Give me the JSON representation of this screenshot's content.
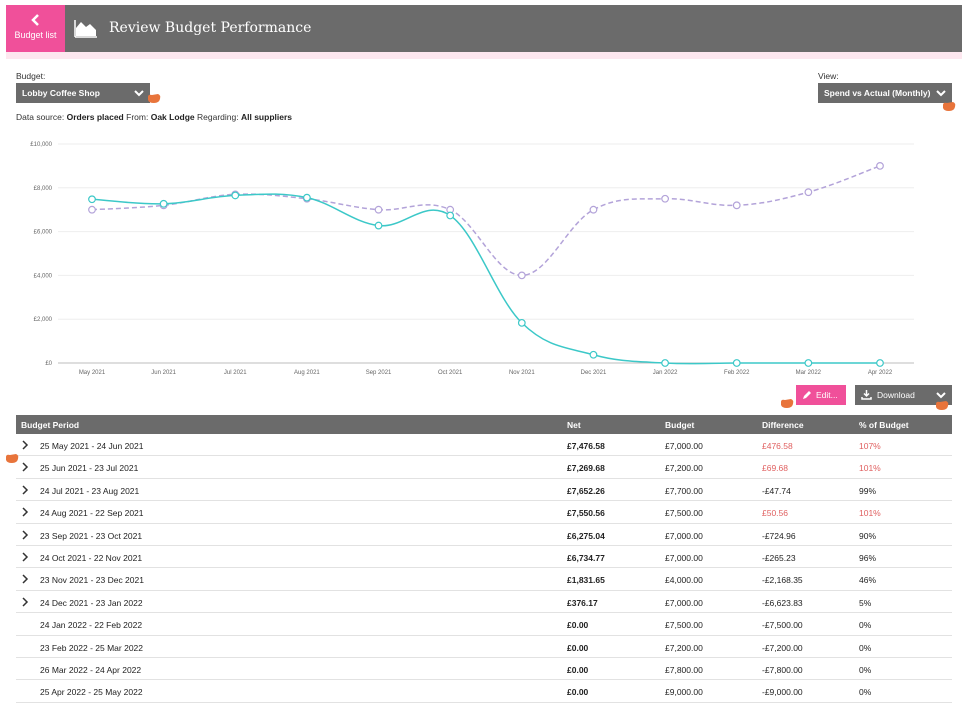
{
  "header": {
    "back_label": "Budget list",
    "title": "Review Budget Performance",
    "title_icon": "area-chart-icon"
  },
  "filters": {
    "budget_label": "Budget:",
    "budget_value": "Lobby Coffee Shop",
    "view_label": "View:",
    "view_value": "Spend vs Actual (Monthly)"
  },
  "datasource": {
    "prefix": "Data source:",
    "source": "Orders placed",
    "from_label": "From:",
    "from": "Oak Lodge",
    "regarding_label": "Regarding:",
    "regarding": "All suppliers"
  },
  "colors": {
    "actual": "#3cc8c8",
    "budget": "#b3a3d9",
    "accent": "#f0509a",
    "over": "#e06060"
  },
  "chart_data": {
    "type": "line",
    "categories": [
      "May 2021",
      "Jun 2021",
      "Jul 2021",
      "Aug 2021",
      "Sep 2021",
      "Oct 2021",
      "Nov 2021",
      "Dec 2021",
      "Jan 2022",
      "Feb 2022",
      "Mar 2022",
      "Apr 2022"
    ],
    "yticks": [
      "£0",
      "£2,000",
      "£4,000",
      "£6,000",
      "£8,000",
      "£10,000"
    ],
    "ylim": [
      0,
      10000
    ],
    "grid": true,
    "series": [
      {
        "style": "solid",
        "color": "#3cc8c8",
        "values": [
          7476.58,
          7269.68,
          7652.26,
          7550.56,
          6275.04,
          6734.77,
          1831.65,
          376.17,
          0,
          0,
          0,
          0
        ]
      },
      {
        "style": "dashed",
        "color": "#b3a3d9",
        "values": [
          7000,
          7200,
          7700,
          7500,
          7000,
          7000,
          4000,
          7000,
          7500,
          7200,
          7800,
          9000
        ]
      }
    ]
  },
  "actions": {
    "edit_label": "Edit...",
    "download_label": "Download"
  },
  "table": {
    "headers": {
      "period": "Budget Period",
      "net": "Net",
      "budget": "Budget",
      "difference": "Difference",
      "pct": "% of Budget"
    },
    "rows": [
      {
        "period": "25 May 2021 - 24 Jun 2021",
        "net": "£7,476.58",
        "budget": "£7,000.00",
        "difference": "£476.58",
        "pct": "107%",
        "over": true,
        "expand": true
      },
      {
        "period": "25 Jun 2021 - 23 Jul 2021",
        "net": "£7,269.68",
        "budget": "£7,200.00",
        "difference": "£69.68",
        "pct": "101%",
        "over": true,
        "expand": true
      },
      {
        "period": "24 Jul 2021 - 23 Aug 2021",
        "net": "£7,652.26",
        "budget": "£7,700.00",
        "difference": "-£47.74",
        "pct": "99%",
        "over": false,
        "expand": true
      },
      {
        "period": "24 Aug 2021 - 22 Sep 2021",
        "net": "£7,550.56",
        "budget": "£7,500.00",
        "difference": "£50.56",
        "pct": "101%",
        "over": true,
        "expand": true
      },
      {
        "period": "23 Sep 2021 - 23 Oct 2021",
        "net": "£6,275.04",
        "budget": "£7,000.00",
        "difference": "-£724.96",
        "pct": "90%",
        "over": false,
        "expand": true
      },
      {
        "period": "24 Oct 2021 - 22 Nov 2021",
        "net": "£6,734.77",
        "budget": "£7,000.00",
        "difference": "-£265.23",
        "pct": "96%",
        "over": false,
        "expand": true
      },
      {
        "period": "23 Nov 2021 - 23 Dec 2021",
        "net": "£1,831.65",
        "budget": "£4,000.00",
        "difference": "-£2,168.35",
        "pct": "46%",
        "over": false,
        "expand": true
      },
      {
        "period": "24 Dec 2021 - 23 Jan 2022",
        "net": "£376.17",
        "budget": "£7,000.00",
        "difference": "-£6,623.83",
        "pct": "5%",
        "over": false,
        "expand": true
      },
      {
        "period": "24 Jan 2022 - 22 Feb 2022",
        "net": "£0.00",
        "budget": "£7,500.00",
        "difference": "-£7,500.00",
        "pct": "0%",
        "over": false,
        "expand": false
      },
      {
        "period": "23 Feb 2022 - 25 Mar 2022",
        "net": "£0.00",
        "budget": "£7,200.00",
        "difference": "-£7,200.00",
        "pct": "0%",
        "over": false,
        "expand": false
      },
      {
        "period": "26 Mar 2022 - 24 Apr 2022",
        "net": "£0.00",
        "budget": "£7,800.00",
        "difference": "-£7,800.00",
        "pct": "0%",
        "over": false,
        "expand": false
      },
      {
        "period": "25 Apr 2022 - 25 May 2022",
        "net": "£0.00",
        "budget": "£9,000.00",
        "difference": "-£9,000.00",
        "pct": "0%",
        "over": false,
        "expand": false
      }
    ]
  }
}
